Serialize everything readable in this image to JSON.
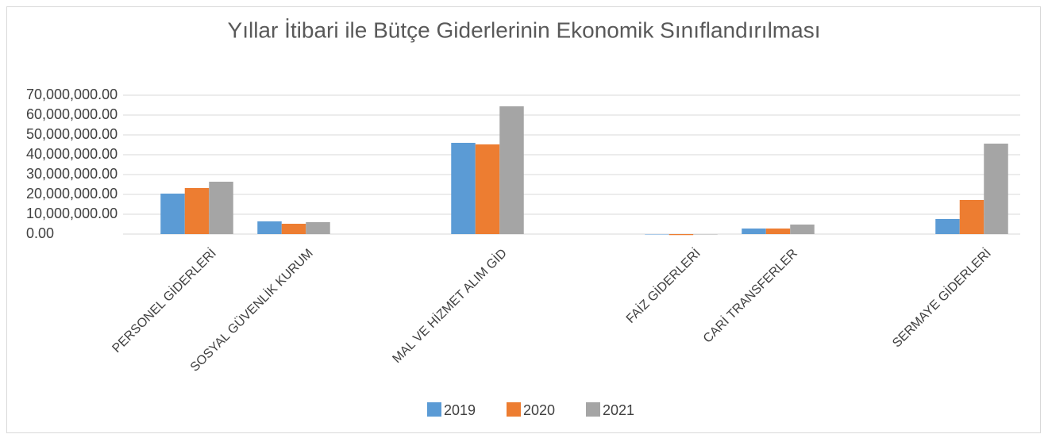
{
  "chart_data": {
    "type": "bar",
    "title": "Yıllar İtibari ile Bütçe Giderlerinin Ekonomik Sınıflandırılması",
    "categories": [
      "PERSONEL GİDERLERİ",
      "SOSYAL GÜVENLİK KURUM",
      null,
      "MAL VE HİZMET ALIM GİD",
      null,
      "FAİZ GİDERLERİ",
      "CARİ TRANSFERLER",
      null,
      "SERMAYE GİDERLERİ"
    ],
    "series": [
      {
        "name": "2019",
        "color": "#5b9bd5",
        "values": [
          20400000,
          6400000,
          null,
          46000000,
          null,
          0,
          2800000,
          null,
          7600000
        ]
      },
      {
        "name": "2020",
        "color": "#ed7d31",
        "values": [
          23200000,
          5200000,
          null,
          45200000,
          null,
          -500000,
          2800000,
          null,
          17200000
        ]
      },
      {
        "name": "2021",
        "color": "#a5a5a5",
        "values": [
          26400000,
          6000000,
          null,
          64400000,
          null,
          0,
          4800000,
          null,
          45600000
        ]
      }
    ],
    "ylim": [
      0,
      70000000
    ],
    "yticks": [
      {
        "value": 0,
        "label": "0.00"
      },
      {
        "value": 10000000,
        "label": "10,000,000.00"
      },
      {
        "value": 20000000,
        "label": "20,000,000.00"
      },
      {
        "value": 30000000,
        "label": "30,000,000.00"
      },
      {
        "value": 40000000,
        "label": "40,000,000.00"
      },
      {
        "value": 50000000,
        "label": "50,000,000.00"
      },
      {
        "value": 60000000,
        "label": "60,000,000.00"
      },
      {
        "value": 70000000,
        "label": "70,000,000.00"
      }
    ],
    "grid": true,
    "legend": "bottom"
  }
}
